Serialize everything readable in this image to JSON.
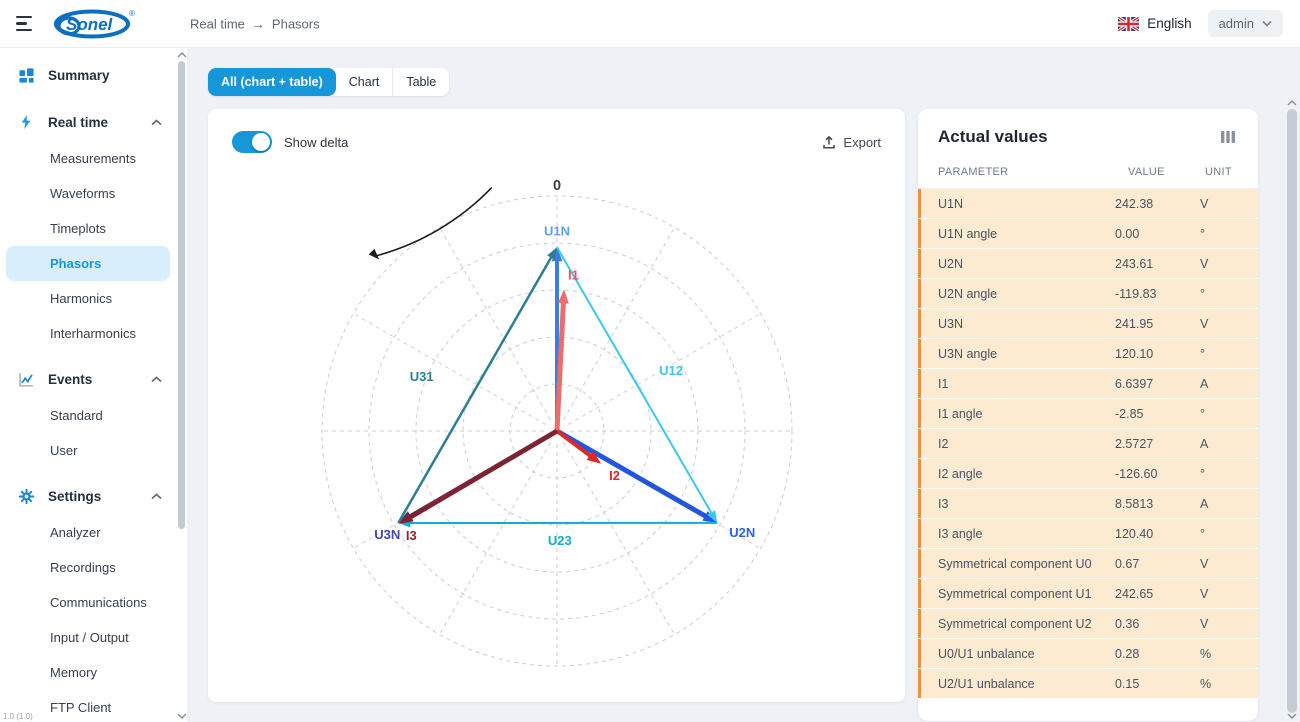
{
  "topbar": {
    "logo": {
      "text": "Sonel",
      "reg": "®"
    },
    "breadcrumb": {
      "items": [
        "Real time",
        "Phasors"
      ],
      "separator": "→"
    },
    "language": {
      "label": "English"
    },
    "user": {
      "label": "admin"
    }
  },
  "sidebar": {
    "version": "1.0 (1.0)",
    "sections": [
      {
        "label": "Summary",
        "icon": "summary-grid-icon",
        "children": []
      },
      {
        "label": "Real time",
        "icon": "realtime-lightning-icon",
        "expanded": true,
        "children": [
          "Measurements",
          "Waveforms",
          "Timeplots",
          "Phasors",
          "Harmonics",
          "Interharmonics"
        ],
        "active_child": "Phasors"
      },
      {
        "label": "Events",
        "icon": "events-chart-icon",
        "expanded": true,
        "children": [
          "Standard",
          "User"
        ]
      },
      {
        "label": "Settings",
        "icon": "settings-gear-icon",
        "expanded": true,
        "children": [
          "Analyzer",
          "Recordings",
          "Communications",
          "Input / Output",
          "Memory",
          "FTP Client"
        ]
      }
    ]
  },
  "tabs": [
    {
      "label": "All (chart + table)",
      "active": true
    },
    {
      "label": "Chart",
      "active": false
    },
    {
      "label": "Table",
      "active": false
    }
  ],
  "chart_card": {
    "show_delta_label": "Show delta",
    "show_delta_on": true,
    "export_label": "Export"
  },
  "table_card": {
    "title": "Actual values",
    "columns": [
      "PARAMETER",
      "VALUE",
      "UNIT"
    ],
    "rows": [
      {
        "param": "U1N",
        "value": "242.38",
        "unit": "V"
      },
      {
        "param": "U1N angle",
        "value": "0.00",
        "unit": "°"
      },
      {
        "param": "U2N",
        "value": "243.61",
        "unit": "V"
      },
      {
        "param": "U2N angle",
        "value": "-119.83",
        "unit": "°"
      },
      {
        "param": "U3N",
        "value": "241.95",
        "unit": "V"
      },
      {
        "param": "U3N angle",
        "value": "120.10",
        "unit": "°"
      },
      {
        "param": "I1",
        "value": "6.6397",
        "unit": "A"
      },
      {
        "param": "I1 angle",
        "value": "-2.85",
        "unit": "°"
      },
      {
        "param": "I2",
        "value": "2.5727",
        "unit": "A"
      },
      {
        "param": "I2 angle",
        "value": "-126.60",
        "unit": "°"
      },
      {
        "param": "I3",
        "value": "8.5813",
        "unit": "A"
      },
      {
        "param": "I3 angle",
        "value": "120.40",
        "unit": "°"
      },
      {
        "param": "Symmetrical component U0",
        "value": "0.67",
        "unit": "V"
      },
      {
        "param": "Symmetrical component U1",
        "value": "242.65",
        "unit": "V"
      },
      {
        "param": "Symmetrical component U2",
        "value": "0.36",
        "unit": "V"
      },
      {
        "param": "U0/U1 unbalance",
        "value": "0.28",
        "unit": "%"
      },
      {
        "param": "U2/U1 unbalance",
        "value": "0.15",
        "unit": "%"
      }
    ]
  },
  "chart_data": {
    "type": "phasor-polar",
    "zero_label": "0",
    "rings": 5,
    "radial_step_deg": 30,
    "voltage_full_scale": 310,
    "current_full_scale": 11,
    "angle_convention": "0 = up, positive counterclockwise",
    "rotation_direction": "clockwise",
    "grid_color": "#c9cdd2",
    "phasors": [
      {
        "name": "U1N",
        "magnitude": 242.38,
        "angle": 0.0,
        "kind": "voltage",
        "color": "#3d7edb",
        "label_color": "#58a0ea",
        "width": 4
      },
      {
        "name": "U2N",
        "magnitude": 243.61,
        "angle": -119.83,
        "kind": "voltage",
        "color": "#2356e0",
        "label_color": "#2e62e2",
        "width": 5
      },
      {
        "name": "U3N",
        "magnitude": 241.95,
        "angle": 120.1,
        "kind": "voltage",
        "color": "#41419f",
        "label_color": "#4646aa",
        "width": 4
      },
      {
        "name": "I1",
        "magnitude": 6.6397,
        "angle": -2.85,
        "kind": "current",
        "color": "#ed6c6c",
        "label_color": "#e85555",
        "width": 5
      },
      {
        "name": "I2",
        "magnitude": 2.5727,
        "angle": -126.6,
        "kind": "current",
        "color": "#e12727",
        "label_color": "#e12727",
        "width": 4
      },
      {
        "name": "I3",
        "magnitude": 8.5813,
        "angle": 120.4,
        "kind": "current",
        "color": "#7c2433",
        "label_color": "#8d2435",
        "width": 5
      }
    ],
    "delta_lines": [
      {
        "name": "U12",
        "from": "U1N",
        "to": "U2N",
        "color": "#3bc7ee",
        "width": 2
      },
      {
        "name": "U23",
        "from": "U2N",
        "to": "U3N",
        "color": "#10aecb",
        "width": 2
      },
      {
        "name": "U31",
        "from": "U3N",
        "to": "U1N",
        "color": "#2d7e95",
        "width": 2.5
      }
    ]
  }
}
